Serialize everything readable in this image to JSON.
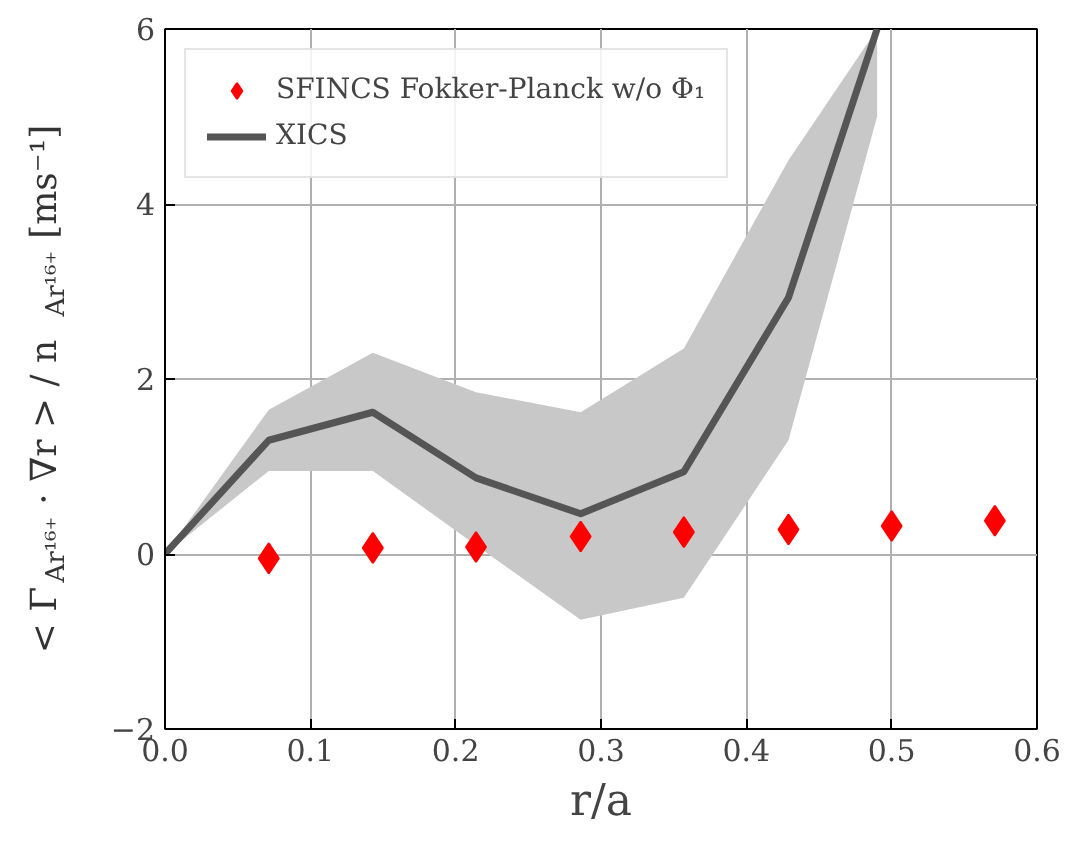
{
  "chart_data": {
    "type": "scatter",
    "xlabel": "r/a",
    "ylabel": "< Γ$_{Ar¹⁶⁺}$ · ∇r > / n$_{Ar¹⁶⁺}$ [ms⁻¹]",
    "x": [
      0.0714,
      0.143,
      0.214,
      0.286,
      0.357,
      0.429,
      0.5,
      0.571
    ],
    "series": [
      {
        "name": "SFINCS Fokker-Planck w/o Φ₁",
        "marker": "diamond",
        "color": "#ff0000",
        "values": [
          -0.05,
          0.07,
          0.08,
          0.2,
          0.25,
          0.28,
          0.32,
          0.38
        ]
      },
      {
        "name": "XICS",
        "type": "line",
        "color": "#555555",
        "x": [
          0,
          0.0714,
          0.143,
          0.214,
          0.286,
          0.357,
          0.429,
          0.49
        ],
        "values": [
          0,
          1.3,
          1.62,
          0.87,
          0.46,
          0.94,
          2.93,
          6
        ],
        "lower": [
          0,
          0.95,
          0.95,
          0.1,
          -0.75,
          -0.5,
          1.3,
          5.0
        ],
        "upper": [
          0,
          1.65,
          2.3,
          1.85,
          1.62,
          2.35,
          4.5,
          6
        ]
      }
    ],
    "xlim": [
      0,
      0.6
    ],
    "ylim": [
      -2,
      6
    ],
    "xticks": [
      {
        "value": 0,
        "label": "0.0"
      },
      0.1,
      0.2,
      0.3,
      0.4,
      0.5,
      0.6
    ],
    "yticks": [
      {
        "value": -2,
        "label": "−2"
      },
      0,
      2,
      4,
      6
    ],
    "grid": true,
    "legend": "top left"
  }
}
